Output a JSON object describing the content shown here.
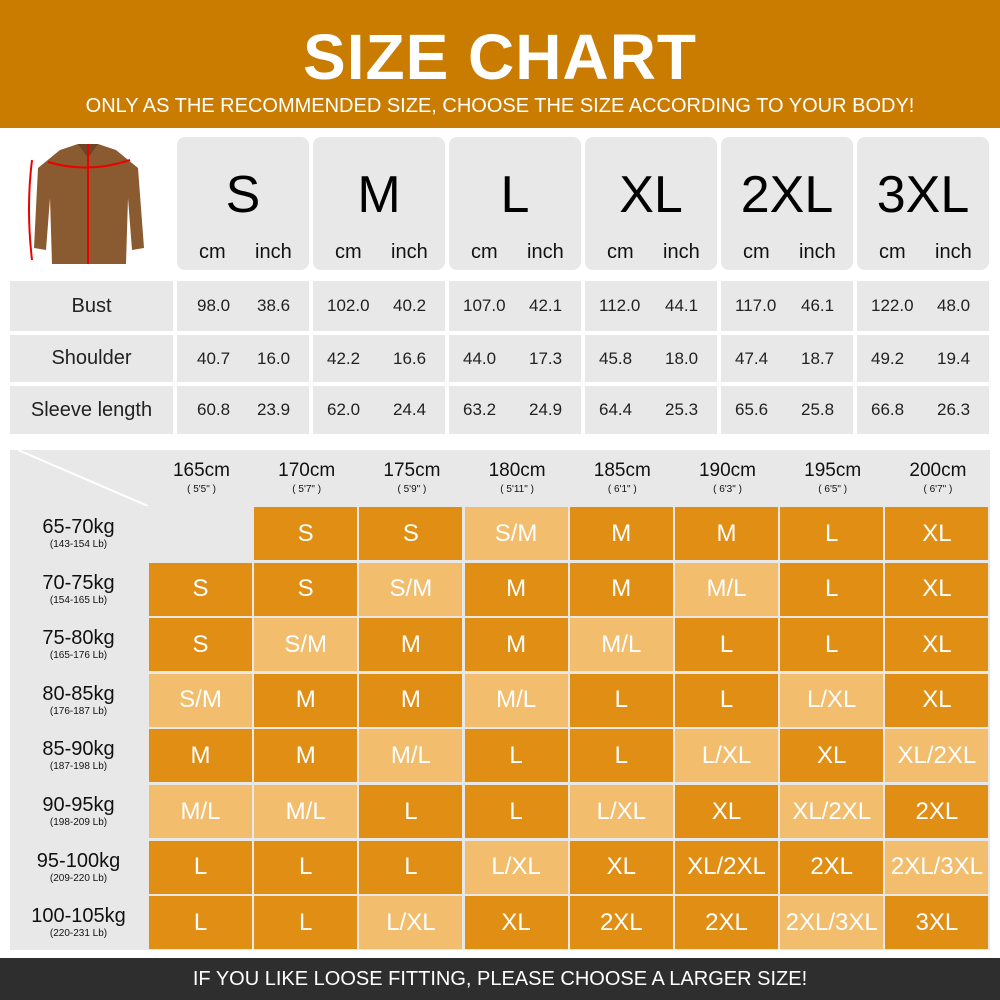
{
  "header": {
    "title": "SIZE CHART",
    "subtitle": "ONLY AS THE RECOMMENDED SIZE, CHOOSE THE SIZE ACCORDING TO YOUR BODY!"
  },
  "product_image": "brown zip-collar knit sweater with red measurement lines",
  "colors": {
    "header": "#c97c00",
    "dark_cell": "#e08e14",
    "light_cell": "#f2bd6d",
    "gray": "#e8e8e8",
    "footer": "#2e2e2e"
  },
  "units": {
    "cm": "cm",
    "inch": "inch"
  },
  "sizes": [
    "S",
    "M",
    "L",
    "XL",
    "2XL",
    "3XL"
  ],
  "measurements": [
    {
      "label": "Bust",
      "values": [
        [
          "98.0",
          "38.6"
        ],
        [
          "102.0",
          "40.2"
        ],
        [
          "107.0",
          "42.1"
        ],
        [
          "112.0",
          "44.1"
        ],
        [
          "117.0",
          "46.1"
        ],
        [
          "122.0",
          "48.0"
        ]
      ]
    },
    {
      "label": "Shoulder",
      "values": [
        [
          "40.7",
          "16.0"
        ],
        [
          "42.2",
          "16.6"
        ],
        [
          "44.0",
          "17.3"
        ],
        [
          "45.8",
          "18.0"
        ],
        [
          "47.4",
          "18.7"
        ],
        [
          "49.2",
          "19.4"
        ]
      ]
    },
    {
      "label": "Sleeve length",
      "values": [
        [
          "60.8",
          "23.9"
        ],
        [
          "62.0",
          "24.4"
        ],
        [
          "63.2",
          "24.9"
        ],
        [
          "64.4",
          "25.3"
        ],
        [
          "65.6",
          "25.8"
        ],
        [
          "66.8",
          "26.3"
        ]
      ]
    }
  ],
  "heights": [
    {
      "cm": "165cm",
      "ft": "( 5'5\" )"
    },
    {
      "cm": "170cm",
      "ft": "( 5'7\" )"
    },
    {
      "cm": "175cm",
      "ft": "( 5'9\" )"
    },
    {
      "cm": "180cm",
      "ft": "( 5'11\" )"
    },
    {
      "cm": "185cm",
      "ft": "( 6'1\" )"
    },
    {
      "cm": "190cm",
      "ft": "( 6'3\" )"
    },
    {
      "cm": "195cm",
      "ft": "( 6'5\" )"
    },
    {
      "cm": "200cm",
      "ft": "( 6'7\" )"
    }
  ],
  "weights": [
    {
      "kg": "65-70kg",
      "lb": "(143-154 Lb)",
      "cells": [
        [
          "",
          "e"
        ],
        [
          "S",
          "d"
        ],
        [
          "S",
          "d"
        ],
        [
          "S/M",
          "l"
        ],
        [
          "M",
          "d"
        ],
        [
          "M",
          "d"
        ],
        [
          "L",
          "d"
        ],
        [
          "XL",
          "d"
        ]
      ]
    },
    {
      "kg": "70-75kg",
      "lb": "(154-165 Lb)",
      "cells": [
        [
          "S",
          "d"
        ],
        [
          "S",
          "d"
        ],
        [
          "S/M",
          "l"
        ],
        [
          "M",
          "d"
        ],
        [
          "M",
          "d"
        ],
        [
          "M/L",
          "l"
        ],
        [
          "L",
          "d"
        ],
        [
          "XL",
          "d"
        ]
      ]
    },
    {
      "kg": "75-80kg",
      "lb": "(165-176 Lb)",
      "cells": [
        [
          "S",
          "d"
        ],
        [
          "S/M",
          "l"
        ],
        [
          "M",
          "d"
        ],
        [
          "M",
          "d"
        ],
        [
          "M/L",
          "l"
        ],
        [
          "L",
          "d"
        ],
        [
          "L",
          "d"
        ],
        [
          "XL",
          "d"
        ]
      ]
    },
    {
      "kg": "80-85kg",
      "lb": "(176-187 Lb)",
      "cells": [
        [
          "S/M",
          "l"
        ],
        [
          "M",
          "d"
        ],
        [
          "M",
          "d"
        ],
        [
          "M/L",
          "l"
        ],
        [
          "L",
          "d"
        ],
        [
          "L",
          "d"
        ],
        [
          "L/XL",
          "l"
        ],
        [
          "XL",
          "d"
        ]
      ]
    },
    {
      "kg": "85-90kg",
      "lb": "(187-198 Lb)",
      "cells": [
        [
          "M",
          "d"
        ],
        [
          "M",
          "d"
        ],
        [
          "M/L",
          "l"
        ],
        [
          "L",
          "d"
        ],
        [
          "L",
          "d"
        ],
        [
          "L/XL",
          "l"
        ],
        [
          "XL",
          "d"
        ],
        [
          "XL/2XL",
          "l"
        ]
      ]
    },
    {
      "kg": "90-95kg",
      "lb": "(198-209 Lb)",
      "cells": [
        [
          "M/L",
          "l"
        ],
        [
          "M/L",
          "l"
        ],
        [
          "L",
          "d"
        ],
        [
          "L",
          "d"
        ],
        [
          "L/XL",
          "l"
        ],
        [
          "XL",
          "d"
        ],
        [
          "XL/2XL",
          "l"
        ],
        [
          "2XL",
          "d"
        ]
      ]
    },
    {
      "kg": "95-100kg",
      "lb": "(209-220 Lb)",
      "cells": [
        [
          "L",
          "d"
        ],
        [
          "L",
          "d"
        ],
        [
          "L",
          "d"
        ],
        [
          "L/XL",
          "l"
        ],
        [
          "XL",
          "d"
        ],
        [
          "XL/2XL",
          "d"
        ],
        [
          "2XL",
          "d"
        ],
        [
          "2XL/3XL",
          "l"
        ]
      ]
    },
    {
      "kg": "100-105kg",
      "lb": "(220-231 Lb)",
      "cells": [
        [
          "L",
          "d"
        ],
        [
          "L",
          "d"
        ],
        [
          "L/XL",
          "l"
        ],
        [
          "XL",
          "d"
        ],
        [
          "2XL",
          "d"
        ],
        [
          "2XL",
          "d"
        ],
        [
          "2XL/3XL",
          "l"
        ],
        [
          "3XL",
          "d"
        ]
      ]
    }
  ],
  "footer": "IF YOU LIKE LOOSE FITTING, PLEASE CHOOSE A LARGER SIZE!"
}
